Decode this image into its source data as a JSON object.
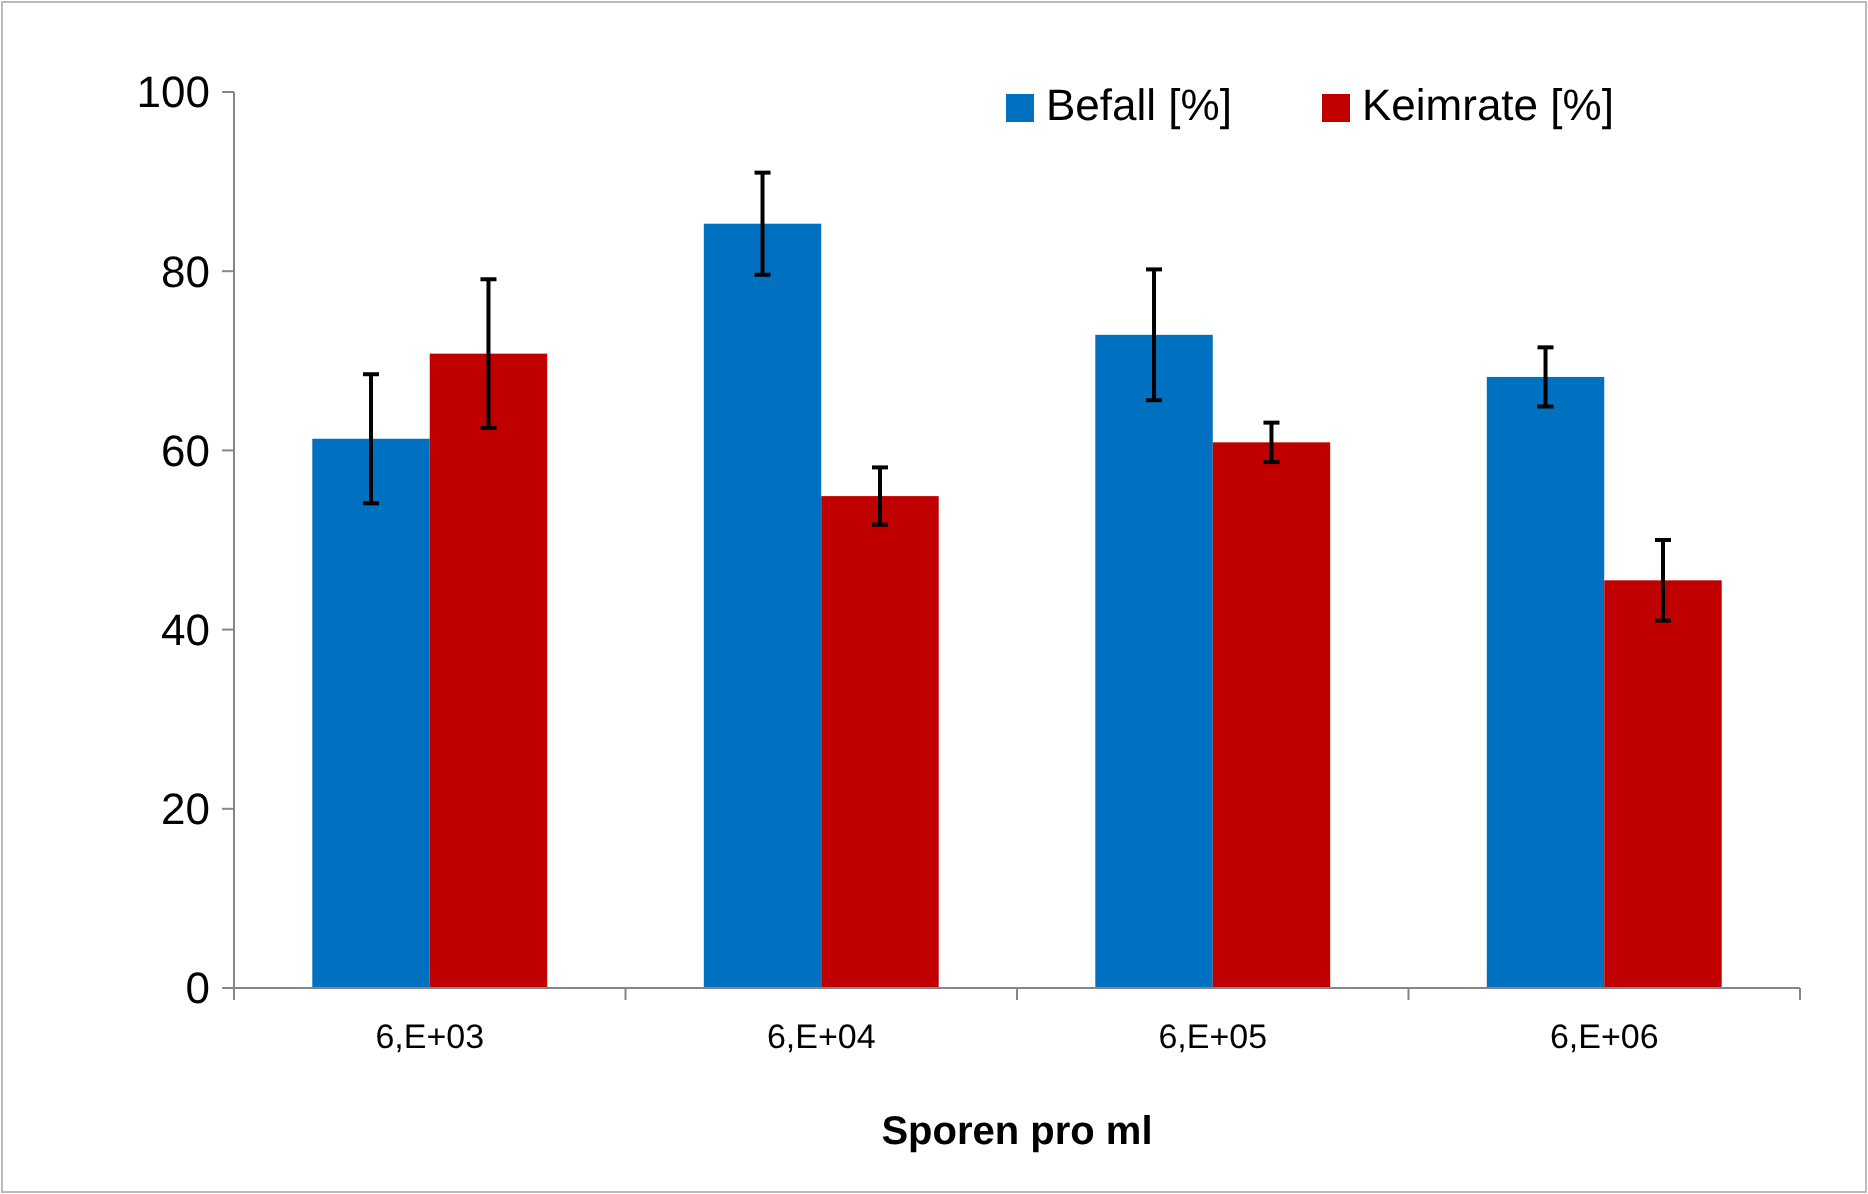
{
  "chart_data": {
    "type": "bar",
    "xlabel": "Sporen pro ml",
    "categories": [
      "6,E+03",
      "6,E+04",
      "6,E+05",
      "6,E+06"
    ],
    "series": [
      {
        "name": "Befall [%]",
        "color": "#0070c0",
        "values": [
          61.3,
          85.3,
          72.9,
          68.2
        ],
        "errors": [
          7.2,
          5.7,
          7.3,
          3.3
        ]
      },
      {
        "name": "Keimrate [%]",
        "color": "#c00000",
        "values": [
          70.8,
          54.9,
          60.9,
          45.5
        ],
        "errors": [
          8.3,
          3.2,
          2.2,
          4.5
        ]
      }
    ],
    "ylim": [
      0,
      100
    ],
    "yticks": [
      0,
      20,
      40,
      60,
      80,
      100
    ],
    "grid": false,
    "legend": "top right"
  }
}
